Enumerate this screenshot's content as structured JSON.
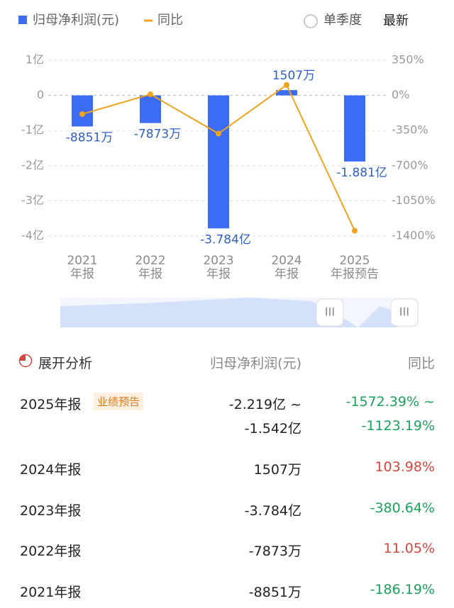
{
  "toggle": {
    "label": "单季度"
  },
  "latest": "最新",
  "chart_data": {
    "type": "bar",
    "categories": [
      "2021\n年报",
      "2022\n年报",
      "2023\n年报",
      "2024\n年报",
      "2025\n年报预告"
    ],
    "series": [
      {
        "name": "归母净利润(元)",
        "color": "#3b6cf3",
        "values": [
          -0.8851,
          -0.7873,
          -3.784,
          0.1507,
          -1.881
        ],
        "value_labels": [
          "-8851万",
          "-7873万",
          "-3.784亿",
          "1507万",
          "-1.881亿"
        ]
      },
      {
        "name": "同比",
        "color": "#f0a41e",
        "type": "line",
        "axis": "y2",
        "values": [
          -186.19,
          11.05,
          -380.64,
          103.98,
          -1347.79
        ]
      }
    ],
    "ylim": [
      -4,
      1
    ],
    "yticks": [
      {
        "value": 1,
        "label": "1亿"
      },
      0,
      {
        "value": -1,
        "label": "-1亿"
      },
      {
        "value": -2,
        "label": "-2亿"
      },
      {
        "value": -3,
        "label": "-3亿"
      },
      {
        "value": -4,
        "label": "-4亿"
      }
    ],
    "y2lim": [
      -1400,
      350
    ],
    "y2ticks": [
      {
        "value": 350,
        "label": "350%"
      },
      {
        "value": 0,
        "label": "0%"
      },
      {
        "value": -350,
        "label": "-350%"
      },
      {
        "value": -700,
        "label": "-700%"
      },
      {
        "value": -1050,
        "label": "-1050%"
      },
      {
        "value": -1400,
        "label": "-1400%"
      }
    ],
    "grid": true
  },
  "table": {
    "header": [
      "展开分析",
      "归母净利润(元)",
      "同比"
    ],
    "rows": [
      {
        "period": "2025年报",
        "tag": "业绩预告",
        "value": [
          "-2.219亿 ~",
          "-1.542亿"
        ],
        "yoy": [
          "-1572.39% ~",
          "-1123.19%"
        ],
        "color": "#1aa35a"
      },
      {
        "period": "2024年报",
        "value": [
          "1507万"
        ],
        "yoy": [
          "103.98%"
        ],
        "color": "#d9453d"
      },
      {
        "period": "2023年报",
        "value": [
          "-3.784亿"
        ],
        "yoy": [
          "-380.64%"
        ],
        "color": "#1aa35a"
      },
      {
        "period": "2022年报",
        "value": [
          "-7873万"
        ],
        "yoy": [
          "11.05%"
        ],
        "color": "#d9453d"
      },
      {
        "period": "2021年报",
        "value": [
          "-8851万"
        ],
        "yoy": [
          "-186.19%"
        ],
        "color": "#1aa35a"
      }
    ]
  }
}
